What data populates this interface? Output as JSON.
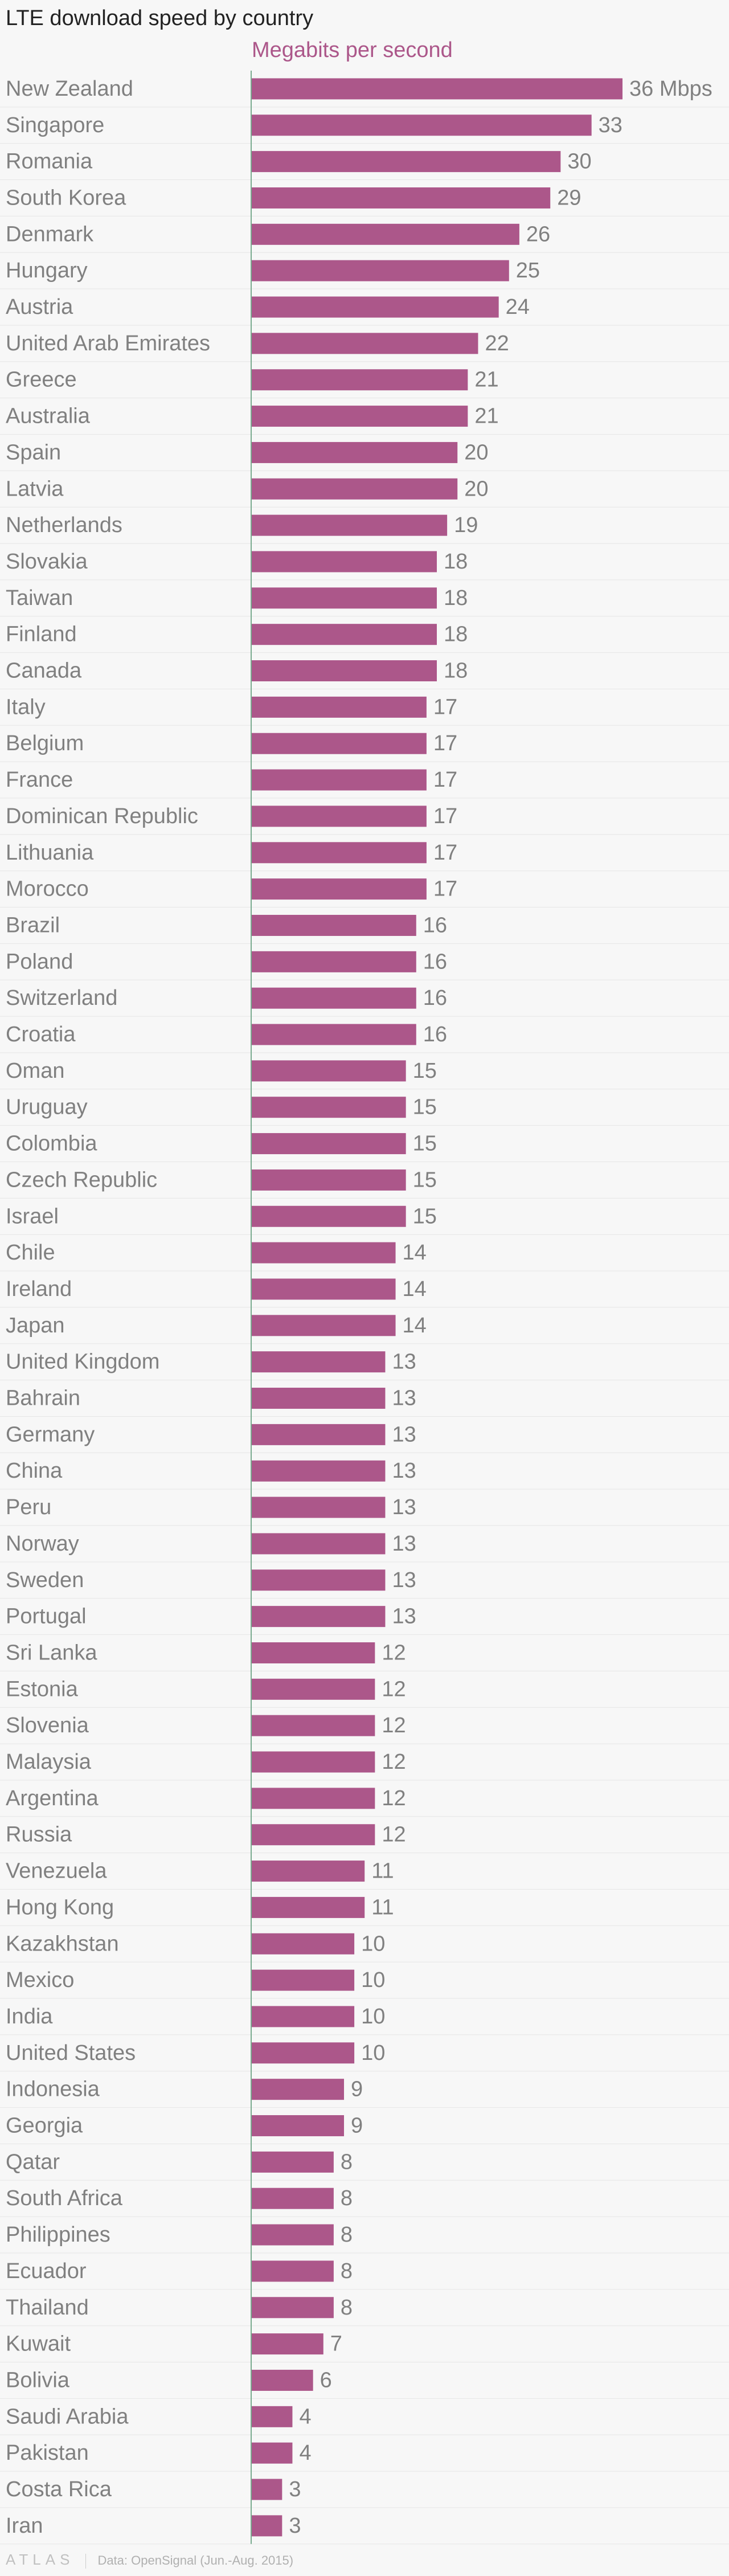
{
  "colors": {
    "bar": "#ac578a",
    "legend": "#ac578a",
    "axis": "#79ab8f",
    "grid": "#e6e6e6"
  },
  "footer": {
    "logo": "ATLAS",
    "source": "Data: OpenSignal (Jun.-Aug. 2015)"
  },
  "chart_data": {
    "type": "bar",
    "orientation": "horizontal",
    "title": "LTE download speed by country",
    "series": [
      {
        "name": "Megabits per second"
      }
    ],
    "unit_suffix": " Mbps",
    "xlim": [
      0,
      36
    ],
    "grid": true,
    "legend_position": "top-left",
    "categories": [
      "New Zealand",
      "Singapore",
      "Romania",
      "South Korea",
      "Denmark",
      "Hungary",
      "Austria",
      "United Arab Emirates",
      "Greece",
      "Australia",
      "Spain",
      "Latvia",
      "Netherlands",
      "Slovakia",
      "Taiwan",
      "Finland",
      "Canada",
      "Italy",
      "Belgium",
      "France",
      "Dominican Republic",
      "Lithuania",
      "Morocco",
      "Brazil",
      "Poland",
      "Switzerland",
      "Croatia",
      "Oman",
      "Uruguay",
      "Colombia",
      "Czech Republic",
      "Israel",
      "Chile",
      "Ireland",
      "Japan",
      "United Kingdom",
      "Bahrain",
      "Germany",
      "China",
      "Peru",
      "Norway",
      "Sweden",
      "Portugal",
      "Sri Lanka",
      "Estonia",
      "Slovenia",
      "Malaysia",
      "Argentina",
      "Russia",
      "Venezuela",
      "Hong Kong",
      "Kazakhstan",
      "Mexico",
      "India",
      "United States",
      "Indonesia",
      "Georgia",
      "Qatar",
      "South Africa",
      "Philippines",
      "Ecuador",
      "Thailand",
      "Kuwait",
      "Bolivia",
      "Saudi Arabia",
      "Pakistan",
      "Costa Rica",
      "Iran"
    ],
    "values": [
      36,
      33,
      30,
      29,
      26,
      25,
      24,
      22,
      21,
      21,
      20,
      20,
      19,
      18,
      18,
      18,
      18,
      17,
      17,
      17,
      17,
      17,
      17,
      16,
      16,
      16,
      16,
      15,
      15,
      15,
      15,
      15,
      14,
      14,
      14,
      13,
      13,
      13,
      13,
      13,
      13,
      13,
      13,
      12,
      12,
      12,
      12,
      12,
      12,
      11,
      11,
      10,
      10,
      10,
      10,
      9,
      9,
      8,
      8,
      8,
      8,
      8,
      7,
      6,
      4,
      4,
      3,
      3
    ]
  }
}
